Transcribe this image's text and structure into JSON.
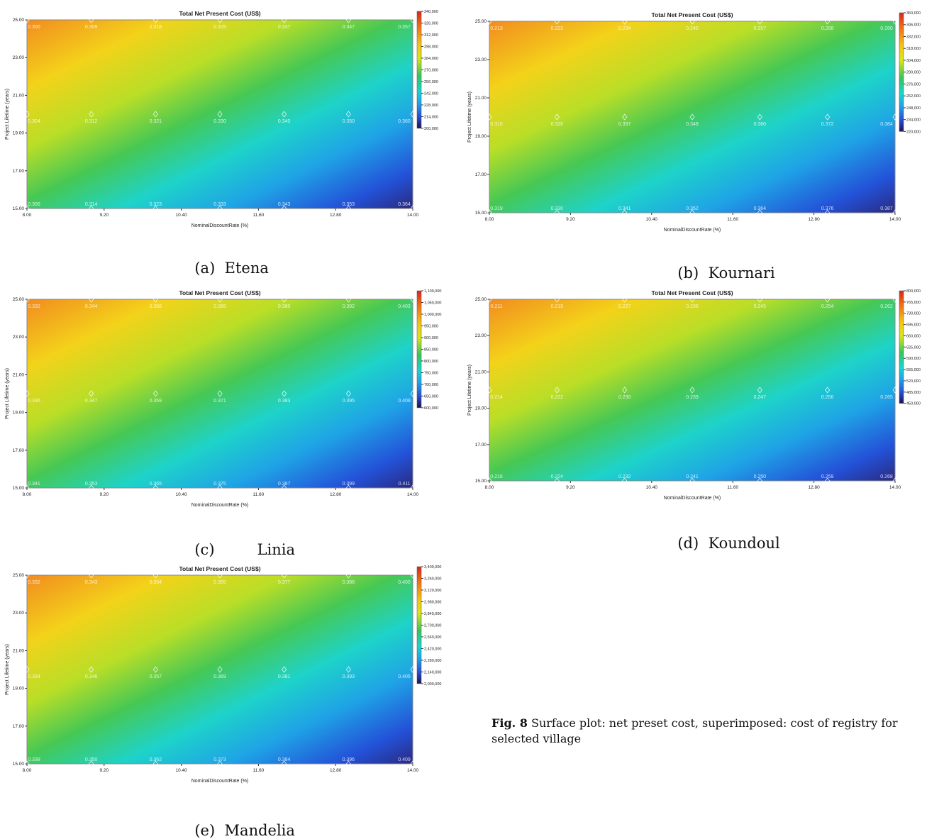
{
  "chart_data": [
    {
      "type": "heatmap",
      "title": "Total Net Present Cost (US$)",
      "xlabel": "NominalDiscountRate (%)",
      "ylabel": "Project Lifetime (years)",
      "xlim": [
        8.0,
        14.0
      ],
      "ylim": [
        15.0,
        25.0
      ],
      "x_ticks": [
        "8.00",
        "9.20",
        "10.40",
        "11.60",
        "12.80",
        "14.00"
      ],
      "y_ticks": [
        "15.00",
        "17.00",
        "19.00",
        "21.00",
        "23.00",
        "25.00"
      ],
      "colorbar": [
        "340,000",
        "326,000",
        "312,000",
        "298,000",
        "284,000",
        "270,000",
        "256,000",
        "242,000",
        "228,000",
        "214,000",
        "200,000"
      ],
      "annotations": [
        {
          "row": "top",
          "labels": [
            "0.300",
            "0.309",
            "0.318",
            "0.328",
            "0.337",
            "0.347",
            "0.357"
          ]
        },
        {
          "row": "mid",
          "labels": [
            "0.304",
            "0.312",
            "0.321",
            "0.330",
            "0.340",
            "0.350",
            "0.360"
          ]
        },
        {
          "row": "bot",
          "labels": [
            "0.306",
            "0.314",
            "0.323",
            "0.333",
            "0.343",
            "0.353",
            "0.364"
          ]
        }
      ]
    },
    {
      "type": "heatmap",
      "title": "Total Net Present Cost (US$)",
      "xlabel": "NominalDiscountRate (%)",
      "ylabel": "Project Lifetime (years)",
      "xlim": [
        8.0,
        14.0
      ],
      "ylim": [
        15.0,
        25.0
      ],
      "x_ticks": [
        "8.00",
        "9.20",
        "10.40",
        "11.60",
        "12.80",
        "14.00"
      ],
      "y_ticks": [
        "15.00",
        "17.00",
        "19.00",
        "21.00",
        "23.00",
        "25.00"
      ],
      "colorbar": [
        "360,000",
        "346,000",
        "332,000",
        "318,000",
        "304,000",
        "290,000",
        "276,000",
        "262,000",
        "248,000",
        "234,000",
        "220,000"
      ],
      "annotations": [
        {
          "row": "top",
          "labels": [
            "0.213",
            "0.223",
            "0.234",
            "0.245",
            "0.257",
            "0.268",
            "0.280"
          ]
        },
        {
          "row": "mid",
          "labels": [
            "0.315",
            "0.326",
            "0.337",
            "0.348",
            "0.360",
            "0.372",
            "0.384"
          ]
        },
        {
          "row": "bot",
          "labels": [
            "0.319",
            "0.330",
            "0.341",
            "0.352",
            "0.364",
            "0.376",
            "0.387"
          ]
        }
      ]
    },
    {
      "type": "heatmap",
      "title": "Total Net Present Cost (US$)",
      "xlabel": "NominalDiscountRate (%)",
      "ylabel": "Project Lifetime (years)",
      "xlim": [
        8.0,
        14.0
      ],
      "ylim": [
        15.0,
        25.0
      ],
      "x_ticks": [
        "8.00",
        "9.20",
        "10.40",
        "11.60",
        "12.80",
        "14.00"
      ],
      "y_ticks": [
        "15.00",
        "17.00",
        "19.00",
        "21.00",
        "23.00",
        "25.00"
      ],
      "colorbar": [
        "1,100,000",
        "1,050,000",
        "1,000,000",
        "950,000",
        "900,000",
        "850,000",
        "800,000",
        "750,000",
        "700,000",
        "650,000",
        "600,000"
      ],
      "annotations": [
        {
          "row": "top",
          "labels": [
            "0.332",
            "0.344",
            "0.356",
            "0.368",
            "0.380",
            "0.392",
            "0.403"
          ]
        },
        {
          "row": "mid",
          "labels": [
            "0.336",
            "0.347",
            "0.359",
            "0.371",
            "0.383",
            "0.395",
            "0.408"
          ]
        },
        {
          "row": "bot",
          "labels": [
            "0.341",
            "0.353",
            "0.365",
            "0.375",
            "0.387",
            "0.399",
            "0.411"
          ]
        }
      ]
    },
    {
      "type": "heatmap",
      "title": "Total Net Present Cost (US$)",
      "xlabel": "NominalDiscountRate (%)",
      "ylabel": "Project Lifetime (years)",
      "xlim": [
        8.0,
        14.0
      ],
      "ylim": [
        15.0,
        25.0
      ],
      "x_ticks": [
        "8.00",
        "9.20",
        "10.40",
        "11.60",
        "12.80",
        "14.00"
      ],
      "y_ticks": [
        "15.00",
        "17.00",
        "19.00",
        "21.00",
        "23.00",
        "25.00"
      ],
      "colorbar": [
        "800,000",
        "765,000",
        "730,000",
        "695,000",
        "660,000",
        "625,000",
        "590,000",
        "555,000",
        "520,000",
        "485,000",
        "450,000"
      ],
      "annotations": [
        {
          "row": "top",
          "labels": [
            "0.211",
            "0.219",
            "0.227",
            "0.236",
            "0.245",
            "0.254",
            "0.262"
          ]
        },
        {
          "row": "mid",
          "labels": [
            "0.214",
            "0.222",
            "0.230",
            "0.239",
            "0.247",
            "0.256",
            "0.265"
          ]
        },
        {
          "row": "bot",
          "labels": [
            "0.216",
            "0.224",
            "0.232",
            "0.241",
            "0.250",
            "0.259",
            "0.268"
          ]
        }
      ]
    },
    {
      "type": "heatmap",
      "title": "Total Net Present Cost (US$)",
      "xlabel": "NominalDiscountRate (%)",
      "ylabel": "Project Lifetime (years)",
      "xlim": [
        8.0,
        14.0
      ],
      "ylim": [
        15.0,
        25.0
      ],
      "x_ticks": [
        "8.00",
        "9.20",
        "10.40",
        "11.60",
        "12.80",
        "14.00"
      ],
      "y_ticks": [
        "15.00",
        "17.00",
        "19.00",
        "21.00",
        "23.00",
        "25.00"
      ],
      "colorbar": [
        "3,400,000",
        "3,260,000",
        "3,120,000",
        "2,980,000",
        "2,840,000",
        "2,700,000",
        "2,560,000",
        "2,420,000",
        "2,280,000",
        "2,140,000",
        "2,000,000"
      ],
      "annotations": [
        {
          "row": "top",
          "labels": [
            "0.332",
            "0.343",
            "0.354",
            "0.365",
            "0.377",
            "0.388",
            "0.400"
          ]
        },
        {
          "row": "mid",
          "labels": [
            "0.334",
            "0.346",
            "0.357",
            "0.369",
            "0.381",
            "0.393",
            "0.405"
          ]
        },
        {
          "row": "bot",
          "labels": [
            "0.338",
            "0.350",
            "0.362",
            "0.373",
            "0.384",
            "0.396",
            "0.409"
          ]
        }
      ]
    }
  ],
  "captions": [
    {
      "letter": "(a)",
      "village": "Etena"
    },
    {
      "letter": "(b)",
      "village": "Kournari"
    },
    {
      "letter": "(c)",
      "village": "Linia"
    },
    {
      "letter": "(d)",
      "village": "Koundoul"
    },
    {
      "letter": "(e)",
      "village": "Mandelia"
    }
  ],
  "figure_caption": {
    "label": "Fig. 8",
    "text": "Surface plot: net preset cost, superimposed: cost of registry for selected village"
  }
}
